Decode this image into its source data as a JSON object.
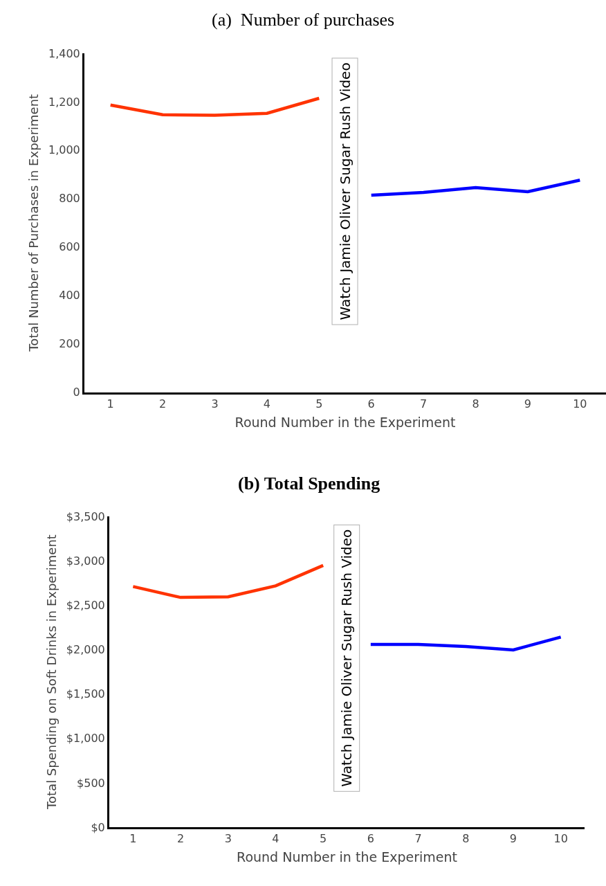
{
  "chart_data": [
    {
      "type": "line",
      "title": "(a)  Number of purchases",
      "xlabel": "Round Number in the Experiment",
      "ylabel": "Total Number of Purchases in Experiment",
      "categories": [
        "1",
        "2",
        "3",
        "4",
        "5",
        "6",
        "7",
        "8",
        "9",
        "10"
      ],
      "series": [
        {
          "color": "#ff3300",
          "values": [
            1186,
            1146,
            1144,
            1152,
            1214,
            null,
            null,
            null,
            null,
            null
          ]
        },
        {
          "color": "#0000ff",
          "values": [
            null,
            null,
            null,
            null,
            null,
            814,
            825,
            845,
            828,
            876
          ]
        }
      ],
      "ylim": [
        0,
        1400
      ],
      "yticks": [
        0,
        200,
        400,
        600,
        800,
        {
          "value": 1000,
          "label": "1,000"
        },
        {
          "value": 1200,
          "label": "1,200"
        },
        {
          "value": 1400,
          "label": "1,400"
        }
      ],
      "annotations": [
        "Watch Jamie Oliver Sugar Rush Video"
      ],
      "marker": "none",
      "line_style": "solid"
    },
    {
      "type": "line",
      "title": "(b) Total Spending",
      "xlabel": "Round Number in the Experiment",
      "ylabel": "Total Spending on Soft Drinks in Experiment",
      "categories": [
        "1",
        "2",
        "3",
        "4",
        "5",
        "6",
        "7",
        "8",
        "9",
        "10"
      ],
      "series": [
        {
          "color": "#ff3300",
          "values": [
            2709,
            2587,
            2594,
            2717,
            2947,
            null,
            null,
            null,
            null,
            null
          ]
        },
        {
          "color": "#0000ff",
          "values": [
            null,
            null,
            null,
            null,
            null,
            2057,
            2057,
            2034,
            1996,
            2141
          ]
        }
      ],
      "ylim": [
        0,
        3500
      ],
      "yticks": [
        {
          "value": 0,
          "label": "$0"
        },
        {
          "value": 500,
          "label": "$500"
        },
        {
          "value": 1000,
          "label": "$1,000"
        },
        {
          "value": 1500,
          "label": "$1,500"
        },
        {
          "value": 2000,
          "label": "$2,000"
        },
        {
          "value": 2500,
          "label": "$2,500"
        },
        {
          "value": 3000,
          "label": "$3,000"
        },
        {
          "value": 3500,
          "label": "$3,500"
        }
      ],
      "annotations": [
        "Watch Jamie Oliver Sugar Rush Video"
      ],
      "marker": "none",
      "line_style": "solid"
    }
  ]
}
